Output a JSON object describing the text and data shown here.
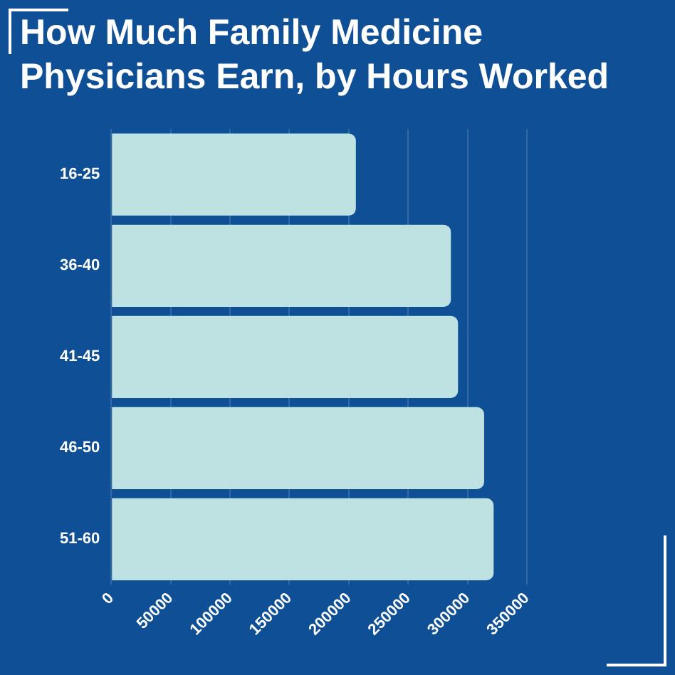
{
  "chart_data": {
    "type": "bar",
    "orientation": "horizontal",
    "title": "How Much Family Medicine Physicians Earn, by Hours Worked",
    "categories": [
      "16-25",
      "36-40",
      "41-45",
      "46-50",
      "51-60"
    ],
    "values": [
      206000,
      286000,
      292000,
      314000,
      322000
    ],
    "color": "#bde2e1",
    "xlim": [
      0,
      350000
    ],
    "xticks": [
      0,
      50000,
      100000,
      150000,
      200000,
      250000,
      300000,
      350000
    ],
    "grid": "x",
    "legend": false
  }
}
